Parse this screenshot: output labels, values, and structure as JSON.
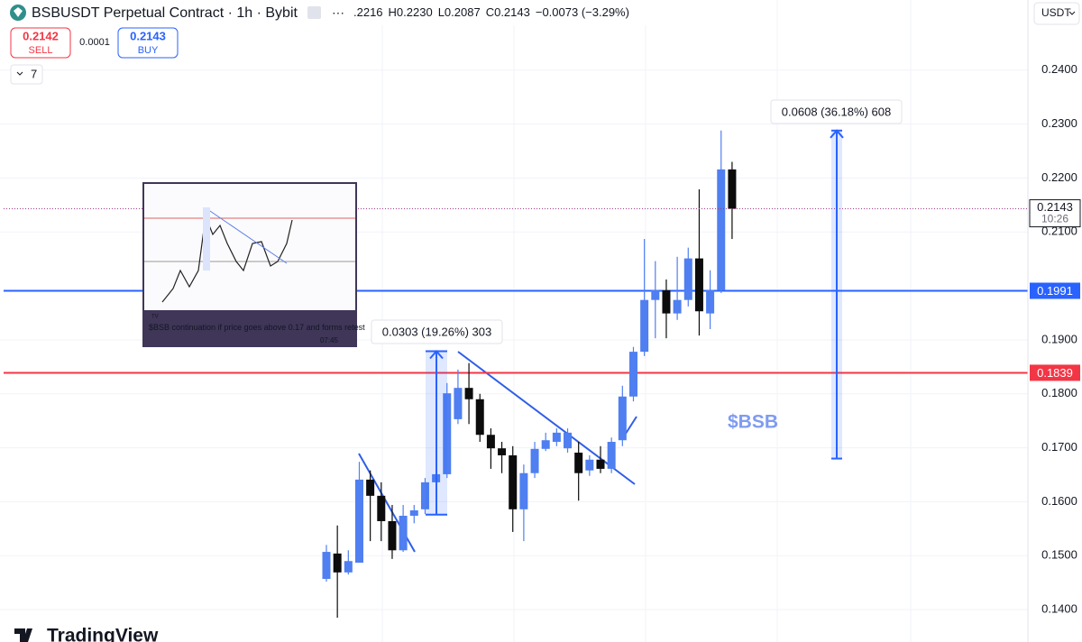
{
  "header": {
    "symbol": "BSBUSDT Perpetual Contract · 1h · Bybit",
    "ohlc": [
      ".2216",
      "H0.2230",
      "L0.2087",
      "C0.2143",
      "−0.0073 (−3.29%)"
    ],
    "currency": "USDT"
  },
  "trade": {
    "sell_price": "0.2142",
    "sell": "SELL",
    "spread": "0.0001",
    "buy_price": "0.2143",
    "buy": "BUY"
  },
  "indicators_count": "7",
  "inset": {
    "caption": "$BSB continuation if price goes above 0.17 and forms retest",
    "time": "07:45"
  },
  "branding": "TradingView",
  "chart_data": {
    "type": "candlestick",
    "open": [
      0.1457,
      0.1504,
      0.1469,
      0.1487,
      0.1641,
      0.1611,
      0.1564,
      0.151,
      0.1574,
      0.1586,
      0.1636,
      0.1651,
      0.1753,
      0.1811,
      0.179,
      0.1724,
      0.1699,
      0.1686,
      0.1586,
      0.1653,
      0.1698,
      0.1711,
      0.1699,
      0.1691,
      0.1658,
      0.1678,
      0.1661,
      0.1714,
      0.1795,
      0.1878,
      0.1974,
      0.1992,
      0.1949,
      0.1974,
      0.2051,
      0.1949,
      0.1992,
      0.2216
    ],
    "high": [
      0.152,
      0.1556,
      0.151,
      0.1674,
      0.1658,
      0.1636,
      0.1594,
      0.1594,
      0.1594,
      0.1644,
      0.1669,
      0.182,
      0.1845,
      0.1857,
      0.18,
      0.1736,
      0.1711,
      0.1703,
      0.1669,
      0.1711,
      0.1728,
      0.1736,
      0.1736,
      0.1711,
      0.1686,
      0.1703,
      0.1719,
      0.1815,
      0.1887,
      0.2087,
      0.2046,
      0.2012,
      0.2054,
      0.2071,
      0.2179,
      0.2029,
      0.2288,
      0.223
    ],
    "low": [
      0.1452,
      0.1385,
      0.1465,
      0.149,
      0.1527,
      0.1527,
      0.1494,
      0.1507,
      0.156,
      0.1577,
      0.1619,
      0.1644,
      0.1744,
      0.1744,
      0.1711,
      0.1661,
      0.1653,
      0.1544,
      0.1527,
      0.1644,
      0.1694,
      0.1703,
      0.1691,
      0.1602,
      0.1648,
      0.1653,
      0.1653,
      0.1703,
      0.1786,
      0.187,
      0.1903,
      0.1903,
      0.1937,
      0.1962,
      0.1908,
      0.192,
      0.1987,
      0.2087
    ],
    "close": [
      0.1507,
      0.1469,
      0.149,
      0.1641,
      0.1611,
      0.1564,
      0.151,
      0.1574,
      0.1584,
      0.1636,
      0.1651,
      0.1801,
      0.1811,
      0.179,
      0.1724,
      0.1699,
      0.1686,
      0.1586,
      0.1653,
      0.1698,
      0.1714,
      0.1728,
      0.1728,
      0.1653,
      0.1678,
      0.1661,
      0.1711,
      0.1795,
      0.1878,
      0.1974,
      0.1992,
      0.1949,
      0.1974,
      0.2051,
      0.1953,
      0.1992,
      0.2216,
      0.2143
    ],
    "up_color": "#4f7ff0",
    "down_color": "#0c0c0c",
    "ylim": [
      0.134,
      0.253
    ],
    "yticks": [
      {
        "value": 0.14,
        "label": "0.1400"
      },
      {
        "value": 0.15,
        "label": "0.1500"
      },
      {
        "value": 0.16,
        "label": "0.1600"
      },
      {
        "value": 0.17,
        "label": "0.1700"
      },
      {
        "value": 0.18,
        "label": "0.1800"
      },
      {
        "value": 0.19,
        "label": "0.1900"
      },
      {
        "value": 0.21,
        "label": "0.2100"
      },
      {
        "value": 0.22,
        "label": "0.2200"
      },
      {
        "value": 0.23,
        "label": "0.2300"
      },
      {
        "value": 0.24,
        "label": "0.2400"
      }
    ],
    "grid": true,
    "levels": [
      {
        "value": 0.1991,
        "color": "#2962ff"
      },
      {
        "value": 0.1839,
        "color": "#f23645"
      }
    ],
    "last_price_time": "10:26",
    "last_price_color": "#a23c8c",
    "measurements": [
      {
        "from": 0.1576,
        "to": 0.1879,
        "label": "0.0303 (19.26%) 303"
      },
      {
        "from": 0.168,
        "to": 0.2288,
        "label": "0.0608 (36.18%) 608"
      }
    ],
    "annotation": "$BSB"
  }
}
